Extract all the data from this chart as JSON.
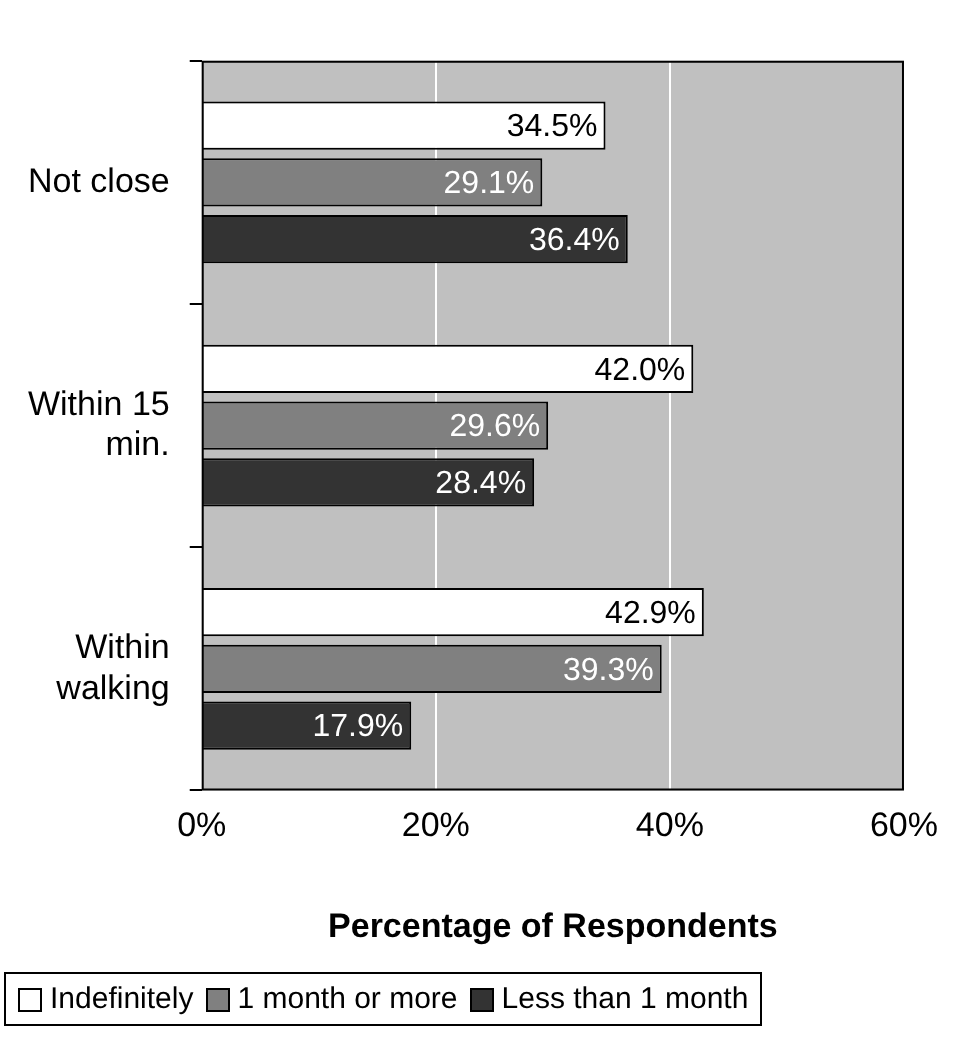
{
  "chart_data": {
    "type": "bar",
    "orientation": "horizontal",
    "xlabel": "Percentage of Respondents",
    "categories": [
      "Not close",
      "Within 15 min.",
      "Within walking"
    ],
    "series": [
      {
        "name": "Indefinitely",
        "color": "#ffffff",
        "values": [
          34.5,
          42.0,
          42.9
        ],
        "value_labels": [
          "34.5%",
          "42.0%",
          "42.9%"
        ]
      },
      {
        "name": "1 month or more",
        "color": "#808080",
        "values": [
          29.1,
          29.6,
          39.3
        ],
        "value_labels": [
          "29.1%",
          "29.6%",
          "39.3%"
        ]
      },
      {
        "name": "Less than 1 month",
        "color": "#333333",
        "values": [
          36.4,
          28.4,
          17.9
        ],
        "value_labels": [
          "36.4%",
          "28.4%",
          "17.9%"
        ]
      }
    ],
    "xlim": [
      0,
      60
    ],
    "xticks": [
      {
        "value": 0,
        "label": "0%"
      },
      {
        "value": 20,
        "label": "20%"
      },
      {
        "value": 40,
        "label": "40%"
      },
      {
        "value": 60,
        "label": "60%"
      }
    ],
    "grid": "x",
    "legend": "bottom"
  }
}
